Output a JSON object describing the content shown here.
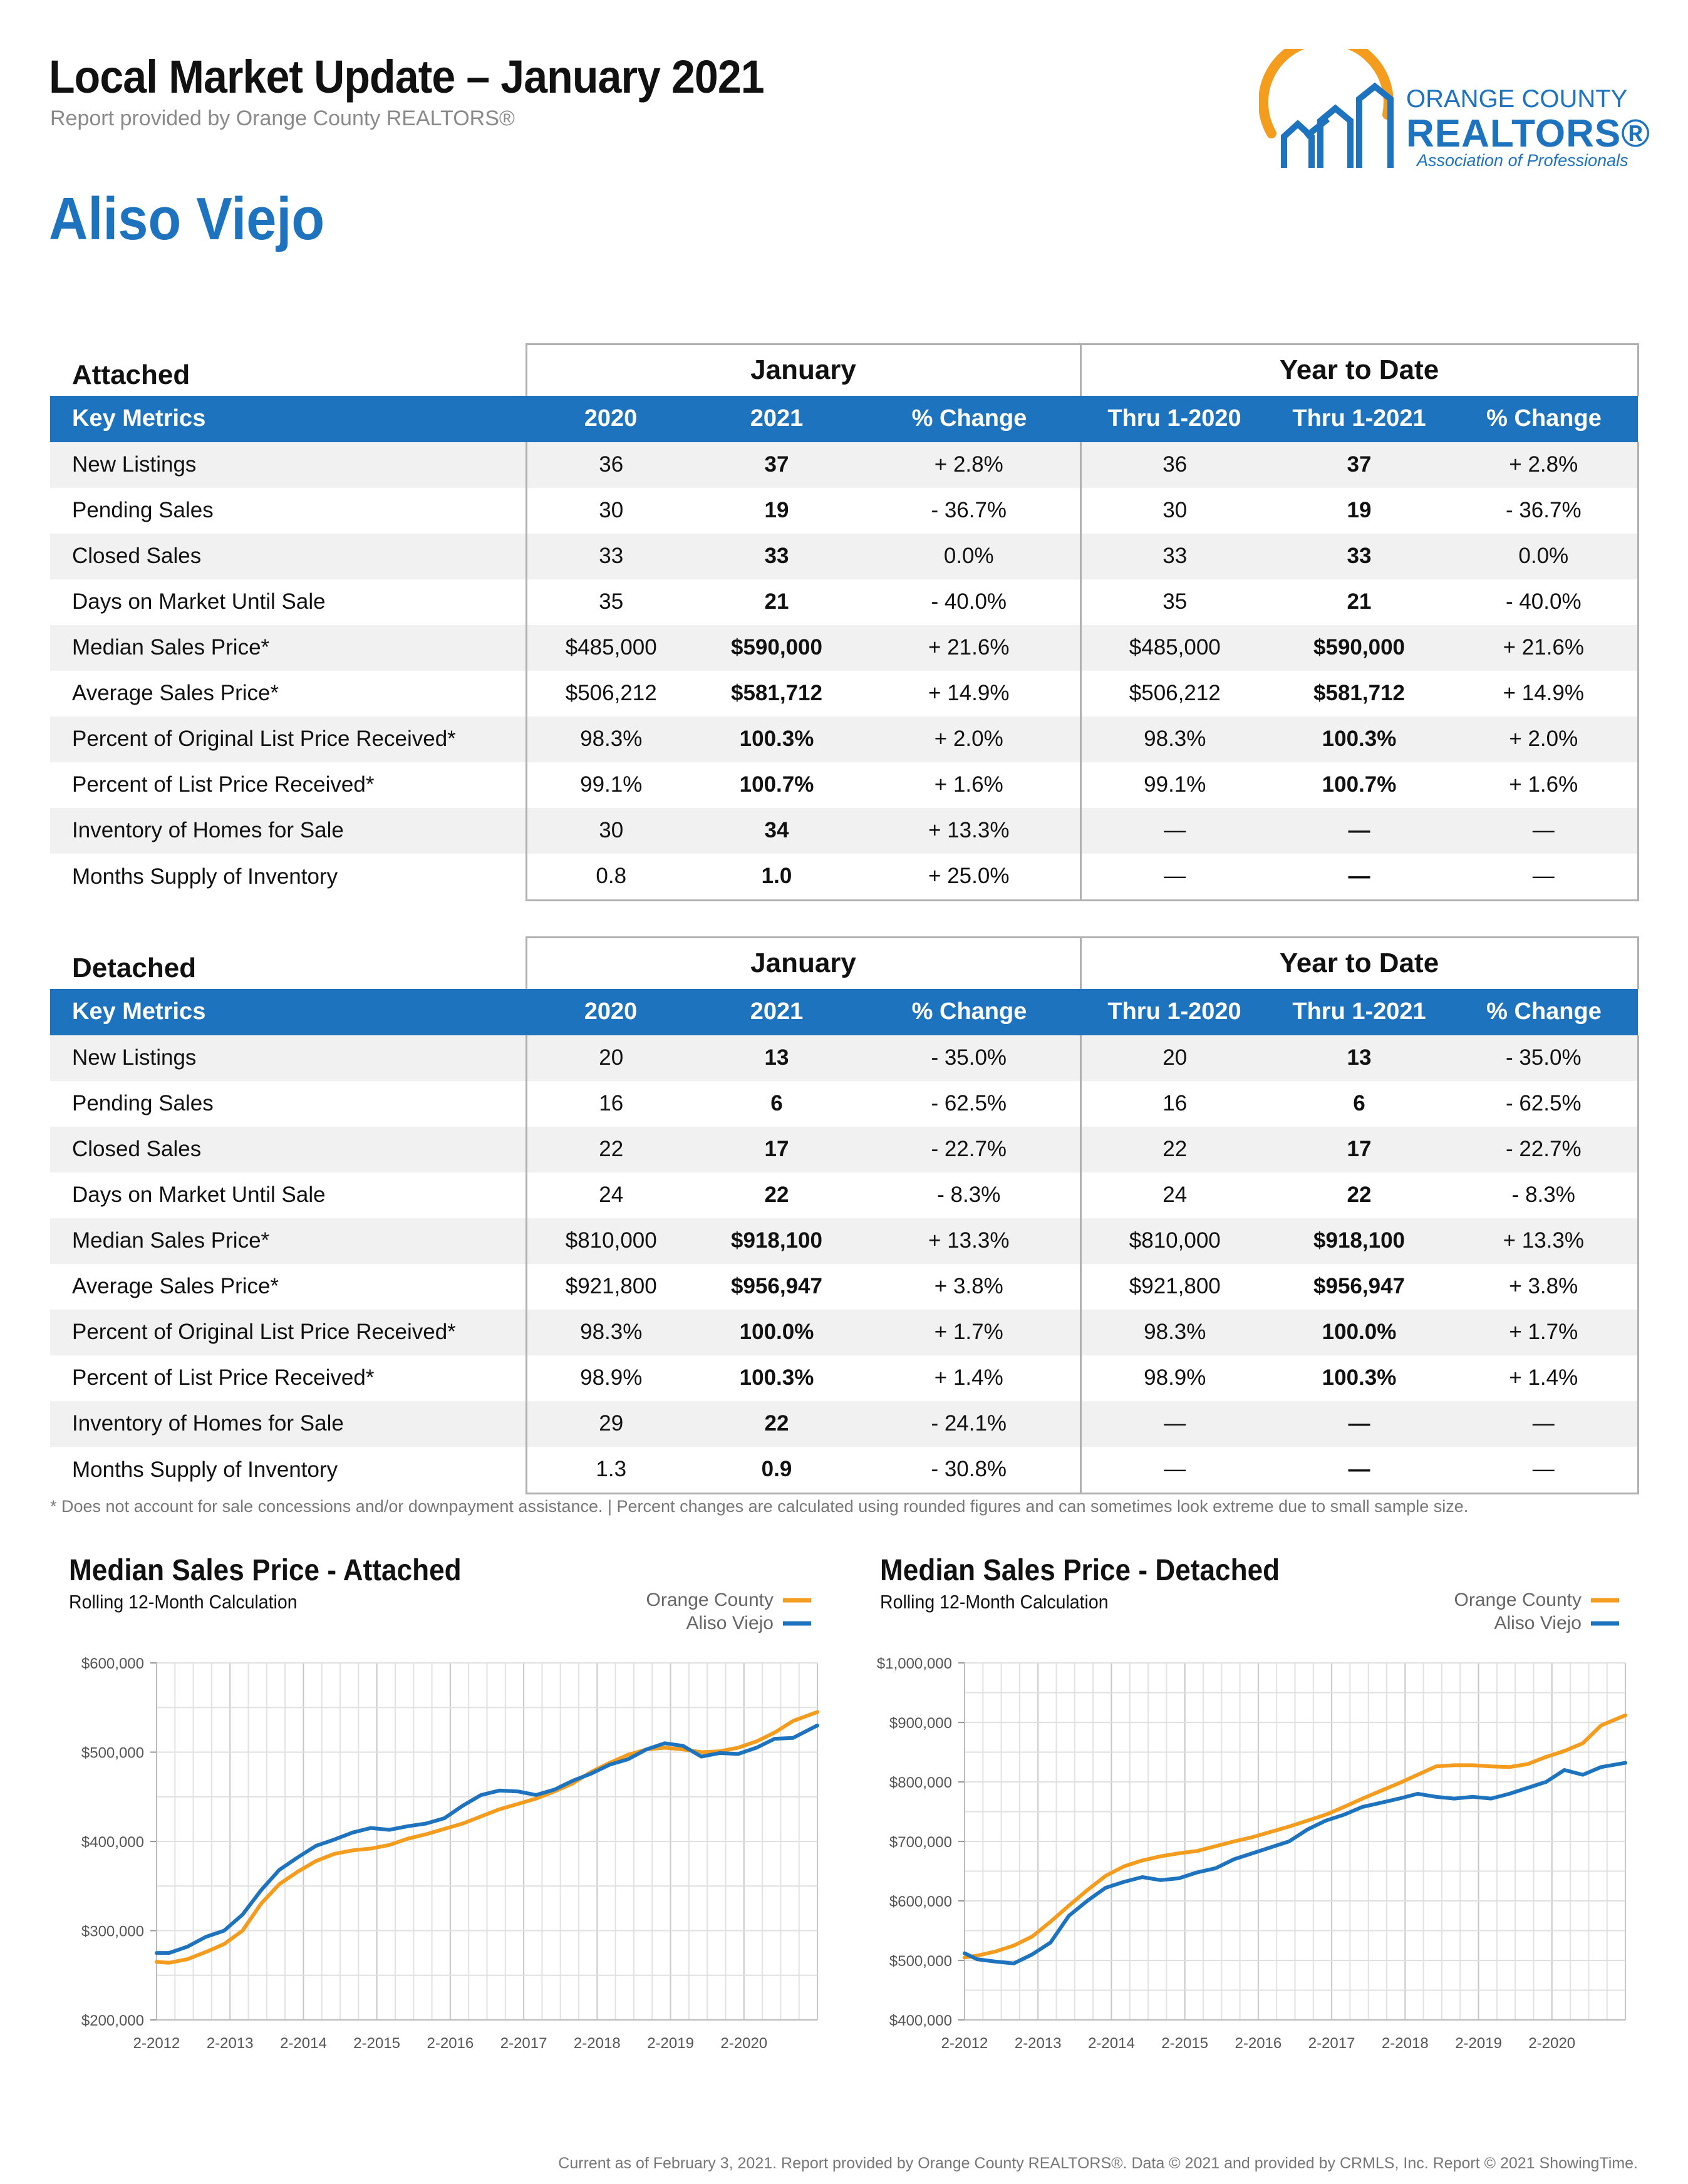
{
  "header": {
    "title": "Local Market Update – January 2021",
    "subtitle": "Report provided by Orange County REALTORS®",
    "area": "Aliso Viejo"
  },
  "logo": {
    "line1": "ORANGE COUNTY",
    "line2": "REALTORS®",
    "line3": "Association of Professionals",
    "colors": {
      "blue": "#1e73be",
      "orange": "#f39c1e"
    }
  },
  "tables": [
    {
      "label": "Attached",
      "group_january": "January",
      "group_ytd": "Year to Date",
      "columns": [
        "Key Metrics",
        "2020",
        "2021",
        "% Change",
        "Thru 1-2020",
        "Thru 1-2021",
        "% Change"
      ],
      "rows": [
        [
          "New Listings",
          "36",
          "37",
          "+ 2.8%",
          "36",
          "37",
          "+ 2.8%"
        ],
        [
          "Pending Sales",
          "30",
          "19",
          "- 36.7%",
          "30",
          "19",
          "- 36.7%"
        ],
        [
          "Closed Sales",
          "33",
          "33",
          "0.0%",
          "33",
          "33",
          "0.0%"
        ],
        [
          "Days on Market Until Sale",
          "35",
          "21",
          "- 40.0%",
          "35",
          "21",
          "- 40.0%"
        ],
        [
          "Median Sales Price*",
          "$485,000",
          "$590,000",
          "+ 21.6%",
          "$485,000",
          "$590,000",
          "+ 21.6%"
        ],
        [
          "Average Sales Price*",
          "$506,212",
          "$581,712",
          "+ 14.9%",
          "$506,212",
          "$581,712",
          "+ 14.9%"
        ],
        [
          "Percent of Original List Price Received*",
          "98.3%",
          "100.3%",
          "+ 2.0%",
          "98.3%",
          "100.3%",
          "+ 2.0%"
        ],
        [
          "Percent of List Price Received*",
          "99.1%",
          "100.7%",
          "+ 1.6%",
          "99.1%",
          "100.7%",
          "+ 1.6%"
        ],
        [
          "Inventory of Homes for Sale",
          "30",
          "34",
          "+ 13.3%",
          "—",
          "—",
          "—"
        ],
        [
          "Months Supply of Inventory",
          "0.8",
          "1.0",
          "+ 25.0%",
          "—",
          "—",
          "—"
        ]
      ]
    },
    {
      "label": "Detached",
      "group_january": "January",
      "group_ytd": "Year to Date",
      "columns": [
        "Key Metrics",
        "2020",
        "2021",
        "% Change",
        "Thru 1-2020",
        "Thru 1-2021",
        "% Change"
      ],
      "rows": [
        [
          "New Listings",
          "20",
          "13",
          "- 35.0%",
          "20",
          "13",
          "- 35.0%"
        ],
        [
          "Pending Sales",
          "16",
          "6",
          "- 62.5%",
          "16",
          "6",
          "- 62.5%"
        ],
        [
          "Closed Sales",
          "22",
          "17",
          "- 22.7%",
          "22",
          "17",
          "- 22.7%"
        ],
        [
          "Days on Market Until Sale",
          "24",
          "22",
          "- 8.3%",
          "24",
          "22",
          "- 8.3%"
        ],
        [
          "Median Sales Price*",
          "$810,000",
          "$918,100",
          "+ 13.3%",
          "$810,000",
          "$918,100",
          "+ 13.3%"
        ],
        [
          "Average Sales Price*",
          "$921,800",
          "$956,947",
          "+ 3.8%",
          "$921,800",
          "$956,947",
          "+ 3.8%"
        ],
        [
          "Percent of Original List Price Received*",
          "98.3%",
          "100.0%",
          "+ 1.7%",
          "98.3%",
          "100.0%",
          "+ 1.7%"
        ],
        [
          "Percent of List Price Received*",
          "98.9%",
          "100.3%",
          "+ 1.4%",
          "98.9%",
          "100.3%",
          "+ 1.4%"
        ],
        [
          "Inventory of Homes for Sale",
          "29",
          "22",
          "- 24.1%",
          "—",
          "—",
          "—"
        ],
        [
          "Months Supply of Inventory",
          "1.3",
          "0.9",
          "- 30.8%",
          "—",
          "—",
          "—"
        ]
      ]
    }
  ],
  "footnote": "* Does not account for sale concessions and/or downpayment assistance. | Percent changes are calculated using rounded figures and can sometimes look extreme due to small sample size.",
  "chart_data": [
    {
      "type": "line",
      "title": "Median Sales Price - Attached",
      "subtitle": "Rolling 12-Month Calculation",
      "ylim": [
        200000,
        600000
      ],
      "yticks": [
        200000,
        300000,
        400000,
        500000,
        600000
      ],
      "ytick_labels": [
        "$200,000",
        "$300,000",
        "$400,000",
        "$500,000",
        "$600,000"
      ],
      "xlim": [
        2012.08,
        2021.08
      ],
      "xtick_labels": [
        "2-2012",
        "2-2013",
        "2-2014",
        "2-2015",
        "2-2016",
        "2-2017",
        "2-2018",
        "2-2019",
        "2-2020"
      ],
      "grid": true,
      "legend": "top-right",
      "series": [
        {
          "name": "Orange County",
          "color": "#f39c1e",
          "points": [
            [
              2012.08,
              265000
            ],
            [
              2012.25,
              264000
            ],
            [
              2012.5,
              268000
            ],
            [
              2012.75,
              276000
            ],
            [
              2013.0,
              285000
            ],
            [
              2013.25,
              300000
            ],
            [
              2013.5,
              330000
            ],
            [
              2013.75,
              352000
            ],
            [
              2014.0,
              366000
            ],
            [
              2014.25,
              378000
            ],
            [
              2014.5,
              386000
            ],
            [
              2014.75,
              390000
            ],
            [
              2015.0,
              392000
            ],
            [
              2015.25,
              396000
            ],
            [
              2015.5,
              403000
            ],
            [
              2015.75,
              408000
            ],
            [
              2016.0,
              414000
            ],
            [
              2016.25,
              420000
            ],
            [
              2016.5,
              428000
            ],
            [
              2016.75,
              436000
            ],
            [
              2017.0,
              442000
            ],
            [
              2017.25,
              448000
            ],
            [
              2017.5,
              456000
            ],
            [
              2017.75,
              465000
            ],
            [
              2018.0,
              478000
            ],
            [
              2018.25,
              488000
            ],
            [
              2018.5,
              497000
            ],
            [
              2018.75,
              503000
            ],
            [
              2019.0,
              505000
            ],
            [
              2019.25,
              503000
            ],
            [
              2019.5,
              500000
            ],
            [
              2019.75,
              501000
            ],
            [
              2020.0,
              505000
            ],
            [
              2020.25,
              512000
            ],
            [
              2020.5,
              522000
            ],
            [
              2020.75,
              535000
            ],
            [
              2021.08,
              545000
            ]
          ]
        },
        {
          "name": "Aliso Viejo",
          "color": "#1e73be",
          "points": [
            [
              2012.08,
              275000
            ],
            [
              2012.25,
              275000
            ],
            [
              2012.5,
              282000
            ],
            [
              2012.75,
              293000
            ],
            [
              2013.0,
              300000
            ],
            [
              2013.25,
              318000
            ],
            [
              2013.5,
              345000
            ],
            [
              2013.75,
              368000
            ],
            [
              2014.0,
              382000
            ],
            [
              2014.25,
              395000
            ],
            [
              2014.5,
              402000
            ],
            [
              2014.75,
              410000
            ],
            [
              2015.0,
              415000
            ],
            [
              2015.25,
              413000
            ],
            [
              2015.5,
              417000
            ],
            [
              2015.75,
              420000
            ],
            [
              2016.0,
              426000
            ],
            [
              2016.25,
              440000
            ],
            [
              2016.5,
              452000
            ],
            [
              2016.75,
              457000
            ],
            [
              2017.0,
              456000
            ],
            [
              2017.25,
              452000
            ],
            [
              2017.5,
              458000
            ],
            [
              2017.75,
              468000
            ],
            [
              2018.0,
              476000
            ],
            [
              2018.25,
              486000
            ],
            [
              2018.5,
              492000
            ],
            [
              2018.75,
              503000
            ],
            [
              2019.0,
              510000
            ],
            [
              2019.25,
              507000
            ],
            [
              2019.5,
              495000
            ],
            [
              2019.75,
              499000
            ],
            [
              2020.0,
              498000
            ],
            [
              2020.25,
              505000
            ],
            [
              2020.5,
              515000
            ],
            [
              2020.75,
              516000
            ],
            [
              2021.08,
              530000
            ]
          ]
        }
      ]
    },
    {
      "type": "line",
      "title": "Median Sales Price - Detached",
      "subtitle": "Rolling 12-Month Calculation",
      "ylim": [
        400000,
        1000000
      ],
      "yticks": [
        400000,
        500000,
        600000,
        700000,
        800000,
        900000,
        1000000
      ],
      "ytick_labels": [
        "$400,000",
        "$500,000",
        "$600,000",
        "$700,000",
        "$800,000",
        "$900,000",
        "$1,000,000"
      ],
      "xlim": [
        2012.08,
        2021.08
      ],
      "xtick_labels": [
        "2-2012",
        "2-2013",
        "2-2014",
        "2-2015",
        "2-2016",
        "2-2017",
        "2-2018",
        "2-2019",
        "2-2020"
      ],
      "grid": true,
      "legend": "top-right",
      "series": [
        {
          "name": "Orange County",
          "color": "#f39c1e",
          "points": [
            [
              2012.08,
              505000
            ],
            [
              2012.25,
              508000
            ],
            [
              2012.5,
              515000
            ],
            [
              2012.75,
              525000
            ],
            [
              2013.0,
              540000
            ],
            [
              2013.25,
              565000
            ],
            [
              2013.5,
              592000
            ],
            [
              2013.75,
              618000
            ],
            [
              2014.0,
              642000
            ],
            [
              2014.25,
              658000
            ],
            [
              2014.5,
              668000
            ],
            [
              2014.75,
              675000
            ],
            [
              2015.0,
              680000
            ],
            [
              2015.25,
              684000
            ],
            [
              2015.5,
              692000
            ],
            [
              2015.75,
              700000
            ],
            [
              2016.0,
              707000
            ],
            [
              2016.25,
              716000
            ],
            [
              2016.5,
              725000
            ],
            [
              2016.75,
              735000
            ],
            [
              2017.0,
              745000
            ],
            [
              2017.25,
              758000
            ],
            [
              2017.5,
              772000
            ],
            [
              2017.75,
              785000
            ],
            [
              2018.0,
              798000
            ],
            [
              2018.25,
              812000
            ],
            [
              2018.5,
              826000
            ],
            [
              2018.75,
              828000
            ],
            [
              2019.0,
              828000
            ],
            [
              2019.25,
              826000
            ],
            [
              2019.5,
              825000
            ],
            [
              2019.75,
              830000
            ],
            [
              2020.0,
              842000
            ],
            [
              2020.25,
              852000
            ],
            [
              2020.5,
              865000
            ],
            [
              2020.75,
              895000
            ],
            [
              2021.08,
              912000
            ]
          ]
        },
        {
          "name": "Aliso Viejo",
          "color": "#1e73be",
          "points": [
            [
              2012.08,
              512000
            ],
            [
              2012.25,
              502000
            ],
            [
              2012.5,
              498000
            ],
            [
              2012.75,
              495000
            ],
            [
              2013.0,
              510000
            ],
            [
              2013.25,
              530000
            ],
            [
              2013.5,
              575000
            ],
            [
              2013.75,
              600000
            ],
            [
              2014.0,
              622000
            ],
            [
              2014.25,
              632000
            ],
            [
              2014.5,
              640000
            ],
            [
              2014.75,
              635000
            ],
            [
              2015.0,
              638000
            ],
            [
              2015.25,
              648000
            ],
            [
              2015.5,
              655000
            ],
            [
              2015.75,
              670000
            ],
            [
              2016.0,
              680000
            ],
            [
              2016.25,
              690000
            ],
            [
              2016.5,
              700000
            ],
            [
              2016.75,
              720000
            ],
            [
              2017.0,
              735000
            ],
            [
              2017.25,
              745000
            ],
            [
              2017.5,
              758000
            ],
            [
              2017.75,
              765000
            ],
            [
              2018.0,
              772000
            ],
            [
              2018.25,
              780000
            ],
            [
              2018.5,
              775000
            ],
            [
              2018.75,
              772000
            ],
            [
              2019.0,
              775000
            ],
            [
              2019.25,
              772000
            ],
            [
              2019.5,
              780000
            ],
            [
              2019.75,
              790000
            ],
            [
              2020.0,
              800000
            ],
            [
              2020.25,
              820000
            ],
            [
              2020.5,
              812000
            ],
            [
              2020.75,
              825000
            ],
            [
              2021.08,
              832000
            ]
          ]
        }
      ]
    }
  ],
  "footer": "Current as of February 3, 2021. Report provided by Orange County REALTORS®. Data © 2021 and provided by CRMLS, Inc. Report © 2021 ShowingTime."
}
